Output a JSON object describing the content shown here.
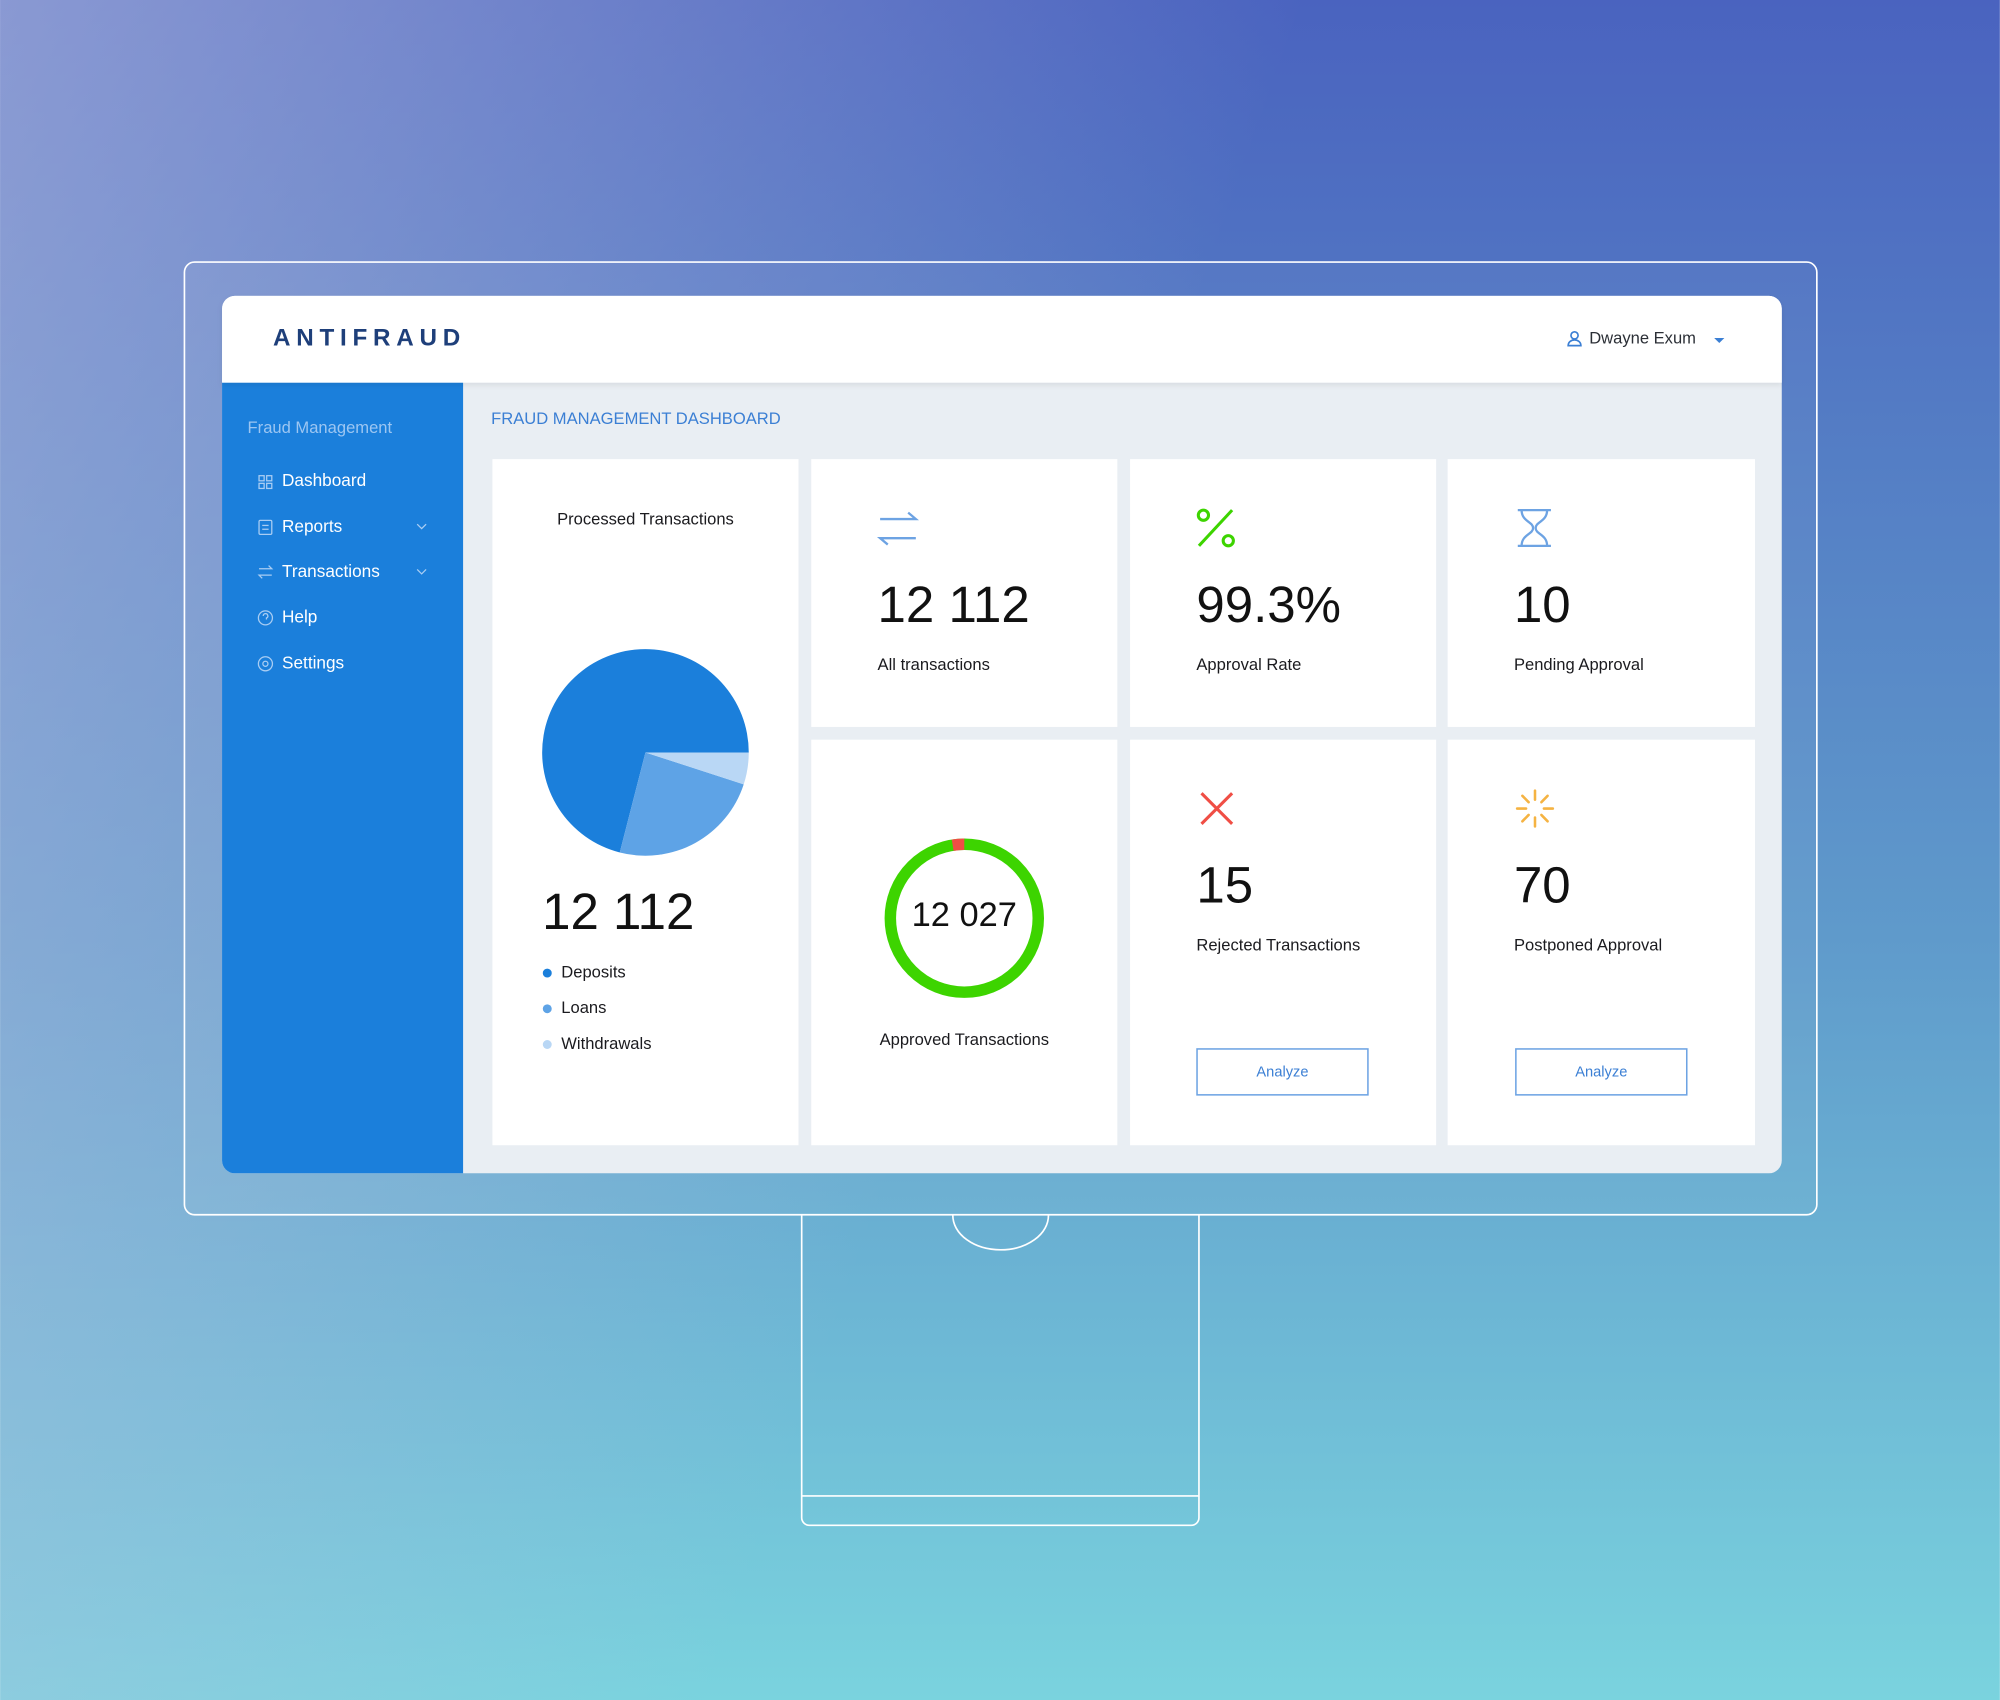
{
  "header": {
    "logo": "ANTIFRAUD",
    "user": "Dwayne Exum"
  },
  "sidebar": {
    "section": "Fraud Management",
    "items": [
      "Dashboard",
      "Reports",
      "Transactions",
      "Help",
      "Settings"
    ]
  },
  "page_title": "FRAUD MANAGEMENT DASHBOARD",
  "chart_data": {
    "type": "pie",
    "title": "Processed Transactions",
    "total": "12 112",
    "categories": [
      "Deposits",
      "Loans",
      "Withdrawals"
    ],
    "values": [
      71,
      24,
      5
    ],
    "colors": [
      "#1b7fdb",
      "#5ea3e6",
      "#b9d7f5"
    ]
  },
  "cards": [
    {
      "value": "12 112",
      "label": "All transactions"
    },
    {
      "value": "99.3%",
      "label": "Approval Rate"
    },
    {
      "value": "10",
      "label": "Pending Approval"
    },
    {
      "value": "12 027",
      "label": "Approved Transactions"
    },
    {
      "value": "15",
      "label": "Rejected Transactions",
      "button": "Analyze"
    },
    {
      "value": "70",
      "label": "Postponed Approval",
      "button": "Analyze"
    }
  ]
}
